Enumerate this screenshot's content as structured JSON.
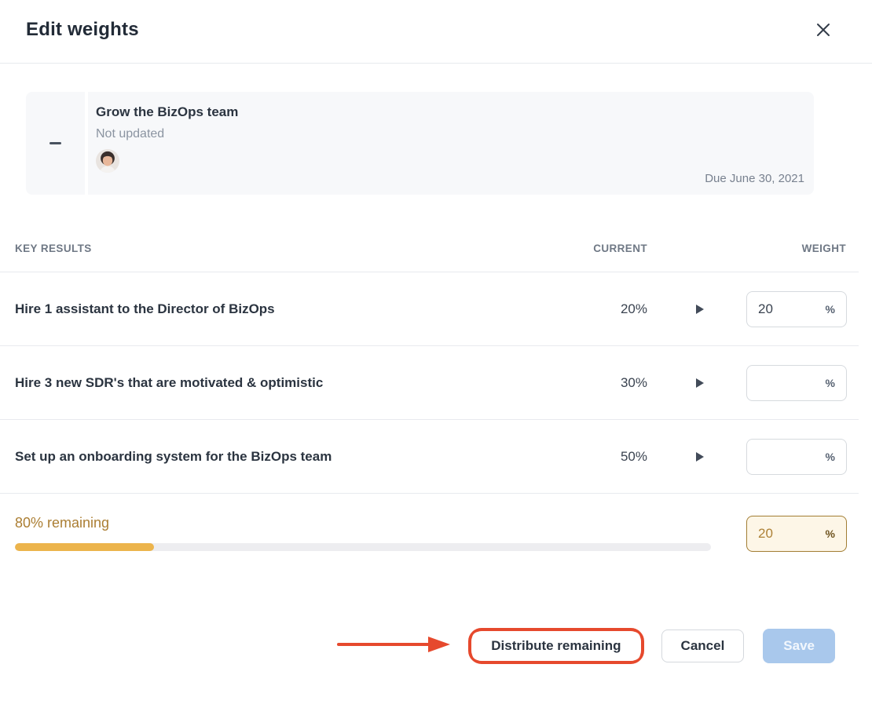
{
  "modal": {
    "title": "Edit weights"
  },
  "objective": {
    "title": "Grow the BizOps team",
    "status": "Not updated",
    "due_date": "Due June 30, 2021"
  },
  "table": {
    "headers": {
      "key_results": "KEY RESULTS",
      "current": "CURRENT",
      "weight": "WEIGHT"
    },
    "rows": [
      {
        "title": "Hire 1 assistant to the Director of BizOps",
        "current": "20%",
        "weight_value": "20",
        "unit": "%"
      },
      {
        "title": "Hire 3 new SDR's that are motivated & optimistic",
        "current": "30%",
        "weight_value": "",
        "unit": "%"
      },
      {
        "title": "Set up an onboarding system for the BizOps team",
        "current": "50%",
        "weight_value": "",
        "unit": "%"
      }
    ]
  },
  "remaining": {
    "label": "80% remaining",
    "percent_remaining": 80,
    "percent_assigned": 20,
    "weight_value": "20",
    "unit": "%"
  },
  "footer": {
    "distribute_label": "Distribute remaining",
    "cancel_label": "Cancel",
    "save_label": "Save"
  },
  "icons": {
    "close": "close-icon",
    "collapse": "minus-icon",
    "expand": "caret-right-icon"
  },
  "colors": {
    "amber_text": "#ab7e33",
    "amber_fill": "#ecb44c",
    "amber_input_bg": "#fdf6e7",
    "annotation_red": "#e6492d",
    "save_disabled_bg": "#a9c8ec",
    "card_bg": "#f7f8fa",
    "divider": "#e8eaee",
    "text_dark": "#2b3440",
    "text_gray": "#8b94a1"
  }
}
